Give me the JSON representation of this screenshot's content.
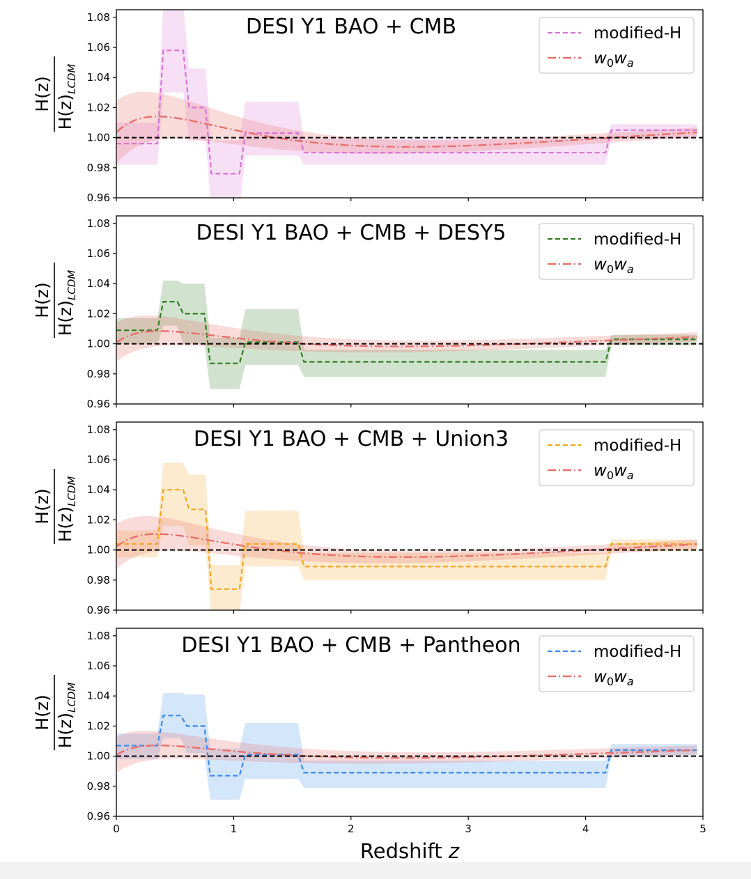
{
  "chart_data": [
    {
      "type": "line",
      "title": "DESI Y1 BAO + CMB",
      "xlim": [
        0,
        5
      ],
      "ylim": [
        0.96,
        1.085
      ],
      "legend_position": "top-right",
      "reference_line": 1.0,
      "series": [
        {
          "name": "modified-H",
          "style": "dashed",
          "color": "#DA70D6",
          "steps": [
            {
              "x0": 0.0,
              "x1": 0.35,
              "y": 0.996,
              "lo": 0.982,
              "hi": 1.01
            },
            {
              "x0": 0.4,
              "x1": 0.57,
              "y": 1.058,
              "lo": 1.03,
              "hi": 1.09
            },
            {
              "x0": 0.62,
              "x1": 0.76,
              "y": 1.02,
              "lo": 0.998,
              "hi": 1.046
            },
            {
              "x0": 0.81,
              "x1": 1.05,
              "y": 0.976,
              "lo": 0.952,
              "hi": 0.998
            },
            {
              "x0": 1.1,
              "x1": 1.55,
              "y": 1.003,
              "lo": 0.988,
              "hi": 1.024
            },
            {
              "x0": 1.6,
              "x1": 4.17,
              "y": 0.99,
              "lo": 0.982,
              "hi": 0.999
            },
            {
              "x0": 4.22,
              "x1": 4.95,
              "y": 1.005,
              "lo": 0.999,
              "hi": 1.009
            }
          ]
        },
        {
          "name": "w0wa",
          "legend_base": "w",
          "legend_sub1": "0",
          "legend_base2": "w",
          "legend_sub2": "a",
          "style": "dashdot",
          "color": "#E8706A",
          "params": {
            "a": 0.068,
            "b": 2.7,
            "c": -0.025,
            "d": 0.8,
            "f": 0.015,
            "g": 1.8,
            "z0": 0.04
          },
          "band": {
            "w0": 0.018,
            "decay": 1.0,
            "w1": 0.003
          }
        }
      ]
    },
    {
      "type": "line",
      "title": "DESI Y1 BAO + CMB + DESY5",
      "xlim": [
        0,
        5
      ],
      "ylim": [
        0.96,
        1.085
      ],
      "legend_position": "top-right",
      "reference_line": 1.0,
      "series": [
        {
          "name": "modified-H",
          "style": "dashed",
          "color": "#2E7D1E",
          "steps": [
            {
              "x0": 0.0,
              "x1": 0.35,
              "y": 1.009,
              "lo": 1.0,
              "hi": 1.017
            },
            {
              "x0": 0.4,
              "x1": 0.52,
              "y": 1.028,
              "lo": 1.012,
              "hi": 1.042
            },
            {
              "x0": 0.57,
              "x1": 0.75,
              "y": 1.02,
              "lo": 1.0,
              "hi": 1.04
            },
            {
              "x0": 0.8,
              "x1": 1.05,
              "y": 0.987,
              "lo": 0.97,
              "hi": 1.004
            },
            {
              "x0": 1.1,
              "x1": 1.55,
              "y": 1.001,
              "lo": 0.986,
              "hi": 1.023
            },
            {
              "x0": 1.6,
              "x1": 4.17,
              "y": 0.988,
              "lo": 0.978,
              "hi": 0.996
            },
            {
              "x0": 4.22,
              "x1": 4.95,
              "y": 1.003,
              "lo": 0.999,
              "hi": 1.006
            }
          ]
        },
        {
          "name": "w0wa",
          "legend_base": "w",
          "legend_sub1": "0",
          "legend_base2": "w",
          "legend_sub2": "a",
          "style": "dashdot",
          "color": "#E8706A",
          "params": {
            "a": 0.042,
            "b": 3.2,
            "c": -0.016,
            "d": 0.8,
            "f": 0.012,
            "g": 1.6,
            "z0": 0.015
          },
          "band": {
            "w0": 0.01,
            "decay": 1.0,
            "w1": 0.003
          }
        }
      ]
    },
    {
      "type": "line",
      "title": "DESI Y1 BAO + CMB + Union3",
      "xlim": [
        0,
        5
      ],
      "ylim": [
        0.96,
        1.085
      ],
      "legend_position": "top-right",
      "reference_line": 1.0,
      "series": [
        {
          "name": "modified-H",
          "style": "dashed",
          "color": "#F5A623",
          "steps": [
            {
              "x0": 0.0,
              "x1": 0.35,
              "y": 1.004,
              "lo": 0.995,
              "hi": 1.013
            },
            {
              "x0": 0.4,
              "x1": 0.57,
              "y": 1.04,
              "lo": 1.016,
              "hi": 1.058
            },
            {
              "x0": 0.62,
              "x1": 0.76,
              "y": 1.027,
              "lo": 1.003,
              "hi": 1.05
            },
            {
              "x0": 0.81,
              "x1": 1.05,
              "y": 0.974,
              "lo": 0.958,
              "hi": 0.99
            },
            {
              "x0": 1.1,
              "x1": 1.55,
              "y": 1.004,
              "lo": 0.989,
              "hi": 1.026
            },
            {
              "x0": 1.6,
              "x1": 4.17,
              "y": 0.989,
              "lo": 0.98,
              "hi": 0.998
            },
            {
              "x0": 4.22,
              "x1": 4.95,
              "y": 1.004,
              "lo": 0.999,
              "hi": 1.007
            }
          ]
        },
        {
          "name": "w0wa",
          "legend_base": "w",
          "legend_sub1": "0",
          "legend_base2": "w",
          "legend_sub2": "a",
          "style": "dashdot",
          "color": "#E8706A",
          "params": {
            "a": 0.052,
            "b": 3.0,
            "c": -0.022,
            "d": 0.8,
            "f": 0.014,
            "g": 1.7,
            "z0": 0.03
          },
          "band": {
            "w0": 0.012,
            "decay": 1.0,
            "w1": 0.003
          }
        }
      ]
    },
    {
      "type": "line",
      "title": "DESI Y1 BAO + CMB + Pantheon",
      "xlim": [
        0,
        5
      ],
      "ylim": [
        0.96,
        1.085
      ],
      "legend_position": "top-right",
      "reference_line": 1.0,
      "series": [
        {
          "name": "modified-H",
          "style": "dashed",
          "color": "#3B8BE8",
          "steps": [
            {
              "x0": 0.0,
              "x1": 0.35,
              "y": 1.007,
              "lo": 0.998,
              "hi": 1.015
            },
            {
              "x0": 0.4,
              "x1": 0.55,
              "y": 1.027,
              "lo": 1.012,
              "hi": 1.042
            },
            {
              "x0": 0.6,
              "x1": 0.75,
              "y": 1.02,
              "lo": 1.002,
              "hi": 1.041
            },
            {
              "x0": 0.8,
              "x1": 1.05,
              "y": 0.987,
              "lo": 0.971,
              "hi": 1.005
            },
            {
              "x0": 1.1,
              "x1": 1.55,
              "y": 1.001,
              "lo": 0.985,
              "hi": 1.022
            },
            {
              "x0": 1.6,
              "x1": 4.17,
              "y": 0.989,
              "lo": 0.979,
              "hi": 0.997
            },
            {
              "x0": 4.22,
              "x1": 4.95,
              "y": 1.004,
              "lo": 1.0,
              "hi": 1.008
            }
          ]
        },
        {
          "name": "w0wa",
          "legend_base": "w",
          "legend_sub1": "0",
          "legend_base2": "w",
          "legend_sub2": "a",
          "style": "dashdot",
          "color": "#E8706A",
          "params": {
            "a": 0.038,
            "b": 3.4,
            "c": -0.013,
            "d": 0.8,
            "f": 0.01,
            "g": 1.6,
            "z0": 0.015
          },
          "band": {
            "w0": 0.009,
            "decay": 1.0,
            "w1": 0.003
          }
        }
      ]
    }
  ],
  "axes": {
    "y_ticks": [
      "0.96",
      "0.98",
      "1.00",
      "1.02",
      "1.04",
      "1.06",
      "1.08"
    ],
    "y_tick_values": [
      0.96,
      0.98,
      1.0,
      1.02,
      1.04,
      1.06,
      1.08
    ],
    "x_ticks": [
      "0",
      "1",
      "2",
      "3",
      "4",
      "5"
    ],
    "x_tick_values": [
      0,
      1,
      2,
      3,
      4,
      5
    ],
    "ylabel_numerator": "H(z)",
    "ylabel_denominator_base": "H(z)",
    "ylabel_denominator_sub": "LCDM",
    "xlabel_text": "Redshift ",
    "xlabel_var": "z"
  }
}
